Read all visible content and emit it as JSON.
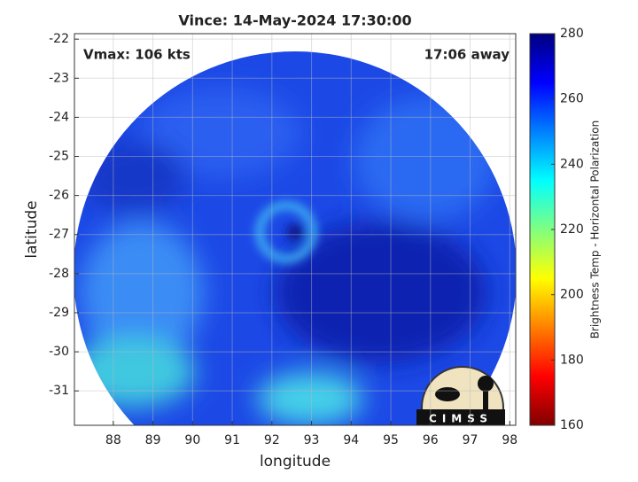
{
  "chart_data": {
    "type": "image",
    "title": "Vince: 14-May-2024 17:30:00",
    "xlabel": "longitude",
    "ylabel": "latitude",
    "xlim": [
      87.02,
      98.15
    ],
    "ylim": [
      -31.88,
      -21.86
    ],
    "xticks": [
      88,
      89,
      90,
      91,
      92,
      93,
      94,
      95,
      96,
      97,
      98
    ],
    "yticks": [
      -22,
      -23,
      -24,
      -25,
      -26,
      -27,
      -28,
      -29,
      -30,
      -31
    ],
    "grid": true,
    "annotations": [
      "Vmax: 106 kts",
      "17:06 away"
    ],
    "logo": "CIMSS",
    "colorbar": {
      "label": "Brightness Temp - Horizontal Polarization",
      "colormap": "jet",
      "lim": [
        160,
        280
      ],
      "ticks": [
        160,
        180,
        200,
        220,
        240,
        260,
        280
      ]
    }
  }
}
